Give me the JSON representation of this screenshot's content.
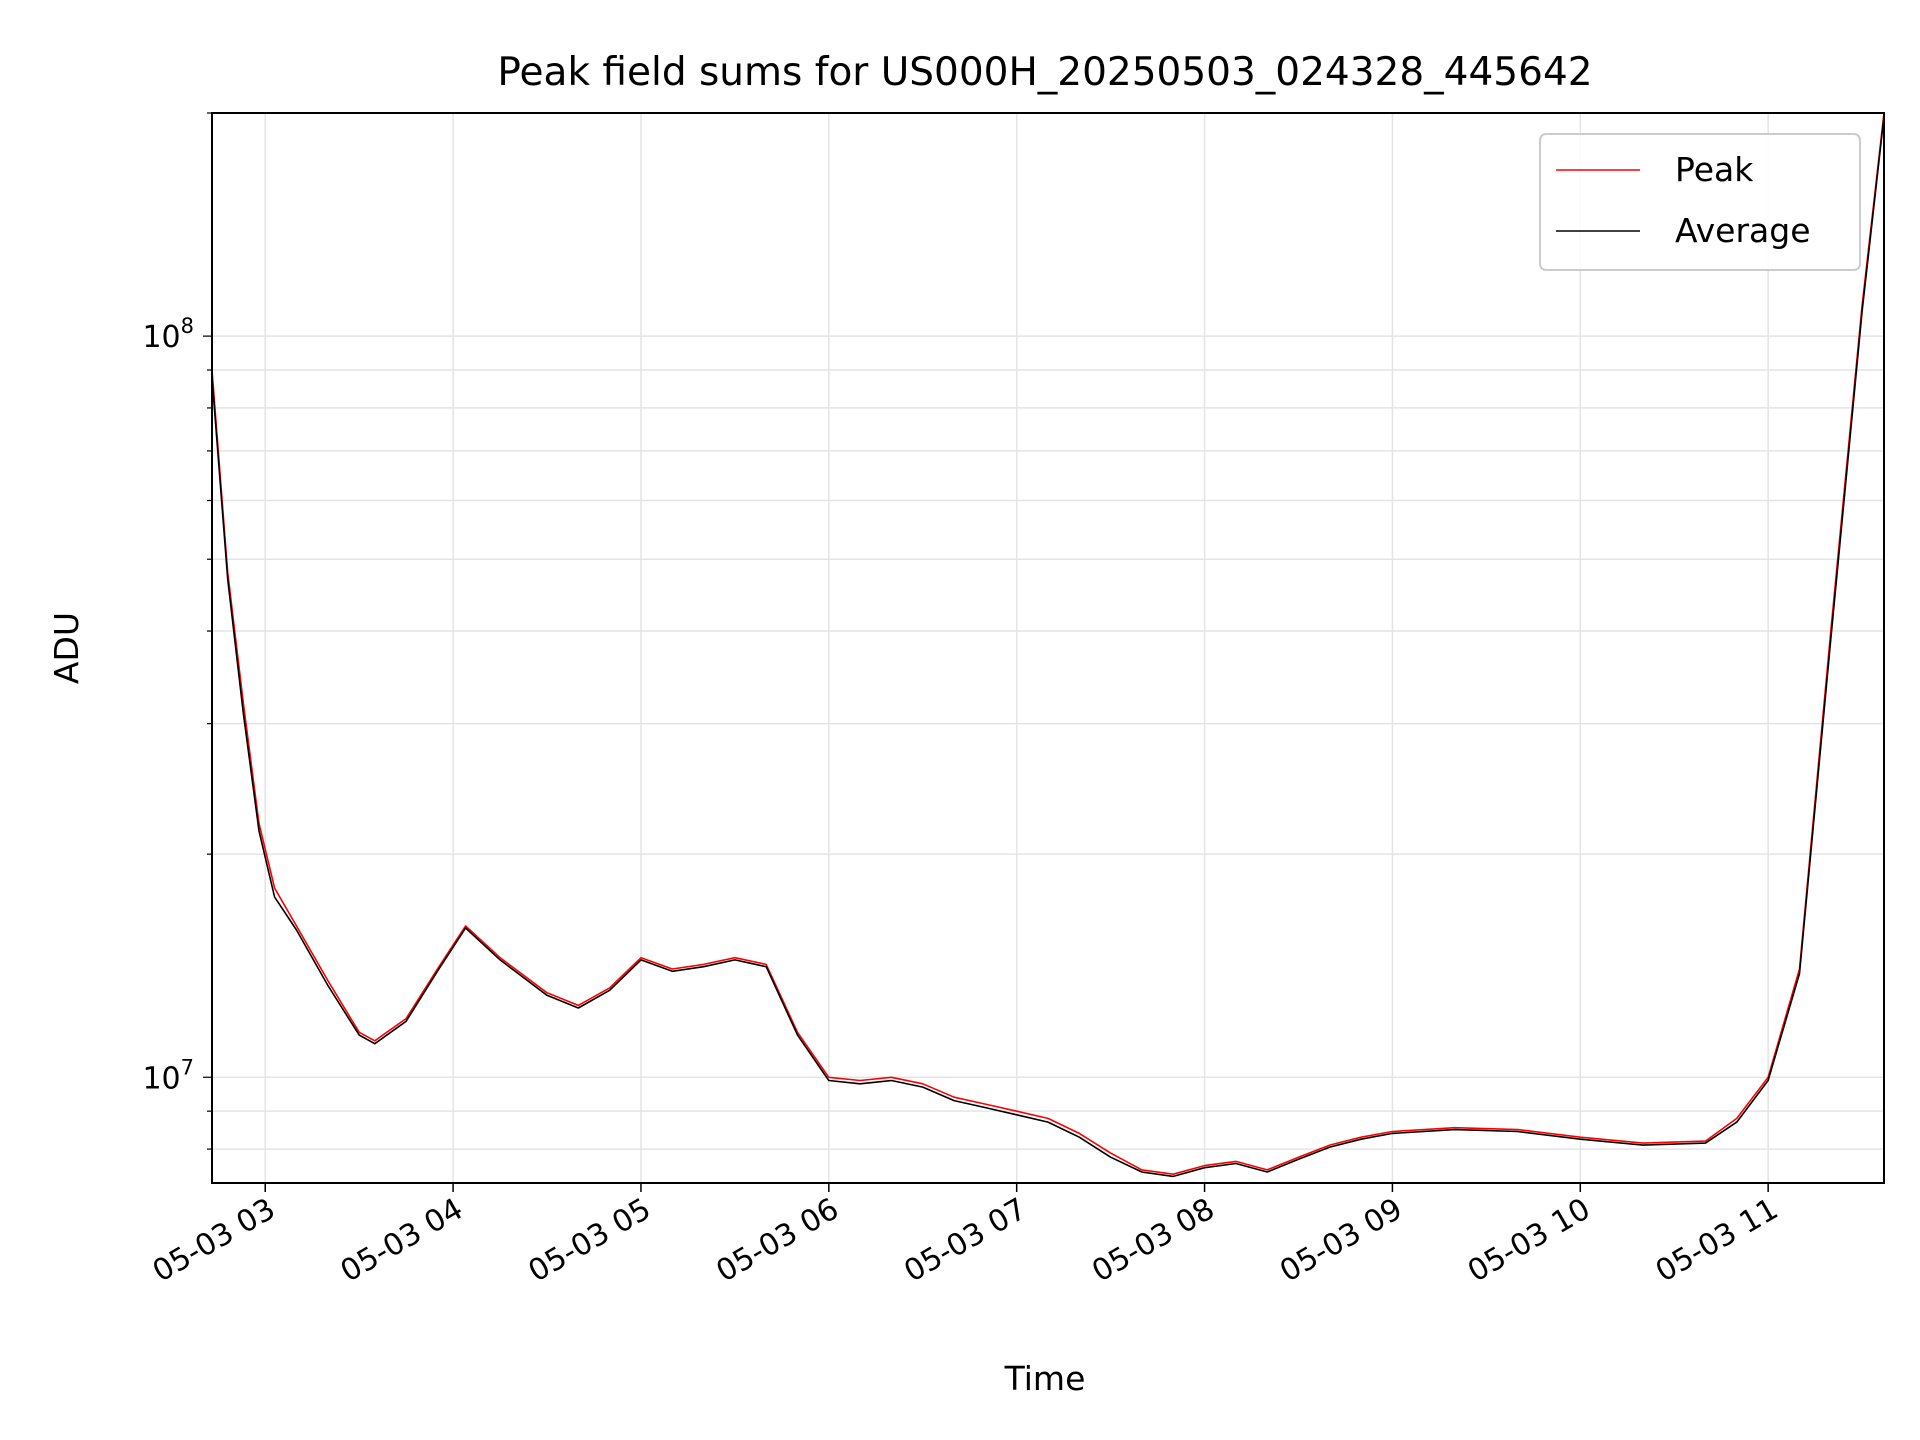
{
  "chart_data": {
    "type": "line",
    "title": "Peak field sums for US000H_20250503_024328_445642",
    "xlabel": "Time",
    "ylabel": "ADU",
    "y_scale": "log",
    "ylim": [
      7200000,
      200000000
    ],
    "xlim": [
      "2025-05-03 02:43",
      "2025-05-03 11:37"
    ],
    "grid": true,
    "legend_position": "top-right",
    "x_ticks": [
      {
        "t": "2025-05-03 03:00",
        "label": "05-03 03"
      },
      {
        "t": "2025-05-03 04:00",
        "label": "05-03 04"
      },
      {
        "t": "2025-05-03 05:00",
        "label": "05-03 05"
      },
      {
        "t": "2025-05-03 06:00",
        "label": "05-03 06"
      },
      {
        "t": "2025-05-03 07:00",
        "label": "05-03 07"
      },
      {
        "t": "2025-05-03 08:00",
        "label": "05-03 08"
      },
      {
        "t": "2025-05-03 09:00",
        "label": "05-03 09"
      },
      {
        "t": "2025-05-03 10:00",
        "label": "05-03 10"
      },
      {
        "t": "2025-05-03 11:00",
        "label": "05-03 11"
      }
    ],
    "y_ticks": [
      {
        "value": 10000000,
        "base": "10",
        "exp": "7"
      },
      {
        "value": 100000000,
        "base": "10",
        "exp": "8"
      }
    ],
    "series": [
      {
        "name": "Peak",
        "color": "#ff0000",
        "points": [
          [
            "2025-05-03 02:43",
            90000000
          ],
          [
            "2025-05-03 02:48",
            48000000
          ],
          [
            "2025-05-03 02:53",
            32000000
          ],
          [
            "2025-05-03 02:58",
            22000000
          ],
          [
            "2025-05-03 03:03",
            18000000
          ],
          [
            "2025-05-03 03:10",
            16000000
          ],
          [
            "2025-05-03 03:20",
            13500000
          ],
          [
            "2025-05-03 03:30",
            11500000
          ],
          [
            "2025-05-03 03:35",
            11200000
          ],
          [
            "2025-05-03 03:45",
            12000000
          ],
          [
            "2025-05-03 03:55",
            14000000
          ],
          [
            "2025-05-03 04:04",
            16000000
          ],
          [
            "2025-05-03 04:15",
            14500000
          ],
          [
            "2025-05-03 04:30",
            13000000
          ],
          [
            "2025-05-03 04:40",
            12500000
          ],
          [
            "2025-05-03 04:50",
            13200000
          ],
          [
            "2025-05-03 05:00",
            14500000
          ],
          [
            "2025-05-03 05:10",
            14000000
          ],
          [
            "2025-05-03 05:20",
            14200000
          ],
          [
            "2025-05-03 05:30",
            14500000
          ],
          [
            "2025-05-03 05:40",
            14200000
          ],
          [
            "2025-05-03 05:50",
            11500000
          ],
          [
            "2025-05-03 06:00",
            10000000
          ],
          [
            "2025-05-03 06:10",
            9900000
          ],
          [
            "2025-05-03 06:20",
            10000000
          ],
          [
            "2025-05-03 06:30",
            9800000
          ],
          [
            "2025-05-03 06:40",
            9400000
          ],
          [
            "2025-05-03 06:50",
            9200000
          ],
          [
            "2025-05-03 07:00",
            9000000
          ],
          [
            "2025-05-03 07:10",
            8800000
          ],
          [
            "2025-05-03 07:20",
            8400000
          ],
          [
            "2025-05-03 07:30",
            7900000
          ],
          [
            "2025-05-03 07:40",
            7500000
          ],
          [
            "2025-05-03 07:50",
            7400000
          ],
          [
            "2025-05-03 08:00",
            7600000
          ],
          [
            "2025-05-03 08:10",
            7700000
          ],
          [
            "2025-05-03 08:20",
            7500000
          ],
          [
            "2025-05-03 08:30",
            7800000
          ],
          [
            "2025-05-03 08:40",
            8100000
          ],
          [
            "2025-05-03 08:50",
            8300000
          ],
          [
            "2025-05-03 09:00",
            8450000
          ],
          [
            "2025-05-03 09:20",
            8550000
          ],
          [
            "2025-05-03 09:40",
            8500000
          ],
          [
            "2025-05-03 10:00",
            8300000
          ],
          [
            "2025-05-03 10:20",
            8150000
          ],
          [
            "2025-05-03 10:40",
            8200000
          ],
          [
            "2025-05-03 10:50",
            8800000
          ],
          [
            "2025-05-03 11:00",
            10000000
          ],
          [
            "2025-05-03 11:10",
            14000000
          ],
          [
            "2025-05-03 11:20",
            40000000
          ],
          [
            "2025-05-03 11:30",
            110000000
          ],
          [
            "2025-05-03 11:37",
            200000000
          ]
        ]
      },
      {
        "name": "Average",
        "color": "#000000",
        "points": [
          [
            "2025-05-03 02:43",
            88000000
          ],
          [
            "2025-05-03 02:48",
            47000000
          ],
          [
            "2025-05-03 02:53",
            31000000
          ],
          [
            "2025-05-03 02:58",
            21500000
          ],
          [
            "2025-05-03 03:03",
            17500000
          ],
          [
            "2025-05-03 03:10",
            15800000
          ],
          [
            "2025-05-03 03:20",
            13300000
          ],
          [
            "2025-05-03 03:30",
            11400000
          ],
          [
            "2025-05-03 03:35",
            11100000
          ],
          [
            "2025-05-03 03:45",
            11900000
          ],
          [
            "2025-05-03 03:55",
            13900000
          ],
          [
            "2025-05-03 04:04",
            15900000
          ],
          [
            "2025-05-03 04:15",
            14400000
          ],
          [
            "2025-05-03 04:30",
            12900000
          ],
          [
            "2025-05-03 04:40",
            12400000
          ],
          [
            "2025-05-03 04:50",
            13100000
          ],
          [
            "2025-05-03 05:00",
            14400000
          ],
          [
            "2025-05-03 05:10",
            13900000
          ],
          [
            "2025-05-03 05:20",
            14100000
          ],
          [
            "2025-05-03 05:30",
            14400000
          ],
          [
            "2025-05-03 05:40",
            14100000
          ],
          [
            "2025-05-03 05:50",
            11400000
          ],
          [
            "2025-05-03 06:00",
            9900000
          ],
          [
            "2025-05-03 06:10",
            9800000
          ],
          [
            "2025-05-03 06:20",
            9900000
          ],
          [
            "2025-05-03 06:30",
            9700000
          ],
          [
            "2025-05-03 06:40",
            9300000
          ],
          [
            "2025-05-03 06:50",
            9100000
          ],
          [
            "2025-05-03 07:00",
            8900000
          ],
          [
            "2025-05-03 07:10",
            8700000
          ],
          [
            "2025-05-03 07:20",
            8300000
          ],
          [
            "2025-05-03 07:30",
            7800000
          ],
          [
            "2025-05-03 07:40",
            7450000
          ],
          [
            "2025-05-03 07:50",
            7350000
          ],
          [
            "2025-05-03 08:00",
            7550000
          ],
          [
            "2025-05-03 08:10",
            7650000
          ],
          [
            "2025-05-03 08:20",
            7450000
          ],
          [
            "2025-05-03 08:30",
            7750000
          ],
          [
            "2025-05-03 08:40",
            8050000
          ],
          [
            "2025-05-03 08:50",
            8250000
          ],
          [
            "2025-05-03 09:00",
            8400000
          ],
          [
            "2025-05-03 09:20",
            8500000
          ],
          [
            "2025-05-03 09:40",
            8450000
          ],
          [
            "2025-05-03 10:00",
            8250000
          ],
          [
            "2025-05-03 10:20",
            8100000
          ],
          [
            "2025-05-03 10:40",
            8150000
          ],
          [
            "2025-05-03 10:50",
            8700000
          ],
          [
            "2025-05-03 11:00",
            9900000
          ],
          [
            "2025-05-03 11:10",
            13800000
          ],
          [
            "2025-05-03 11:20",
            39000000
          ],
          [
            "2025-05-03 11:30",
            108000000
          ],
          [
            "2025-05-03 11:37",
            198000000
          ]
        ]
      }
    ]
  }
}
